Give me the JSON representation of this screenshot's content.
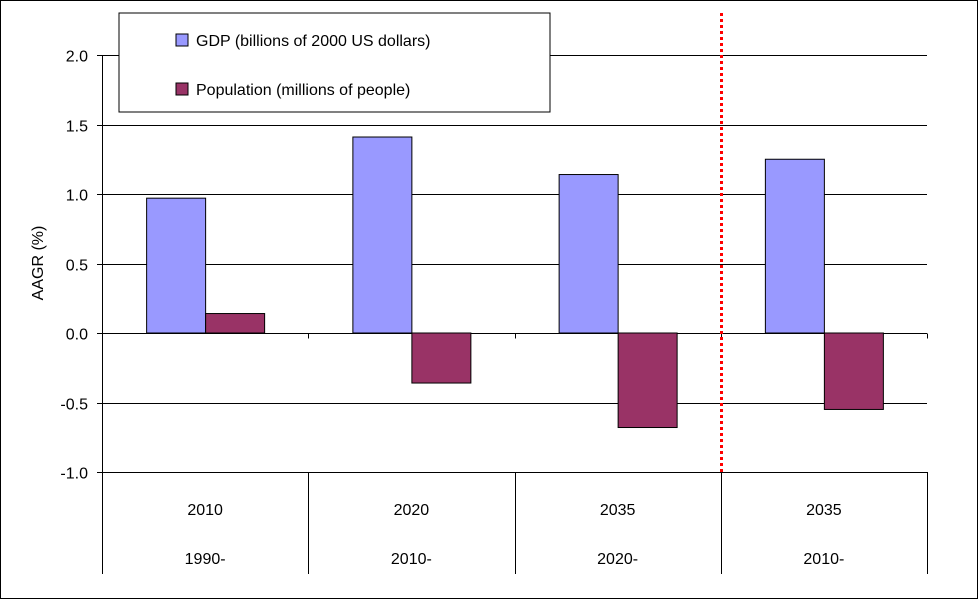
{
  "chart_data": {
    "type": "bar",
    "ylabel": "AAGR (%)",
    "ylim": [
      -1.0,
      2.0
    ],
    "yticks": [
      "2.0",
      "1.5",
      "1.0",
      "0.5",
      "0.0",
      "-0.5",
      "-1.0"
    ],
    "ytick_values": [
      2.0,
      1.5,
      1.0,
      0.5,
      0.0,
      -0.5,
      -1.0
    ],
    "categories": [
      {
        "end": "2010",
        "start": "1990-"
      },
      {
        "end": "2020",
        "start": "2010-"
      },
      {
        "end": "2035",
        "start": "2020-"
      },
      {
        "end": "2035",
        "start": "2010-"
      }
    ],
    "series": [
      {
        "name": "GDP (billions of 2000 US dollars)",
        "color": "#9999FF",
        "values": [
          0.97,
          1.41,
          1.14,
          1.25
        ]
      },
      {
        "name": "Population (millions of people)",
        "color": "#993366",
        "values": [
          0.14,
          -0.36,
          -0.68,
          -0.55
        ]
      }
    ],
    "grid": true,
    "legend_position": "top-left",
    "separator": {
      "after_category_index": 2,
      "color": "#FF0000",
      "style": "dotted"
    }
  }
}
